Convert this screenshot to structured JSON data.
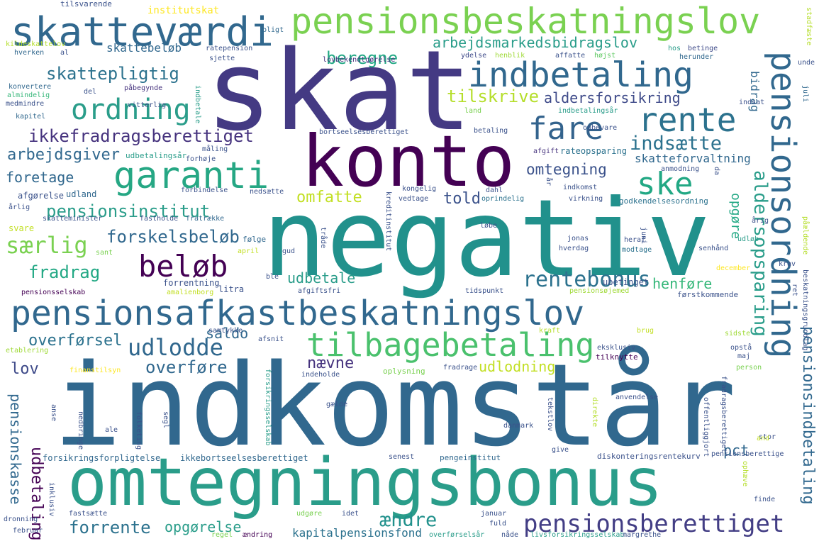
{
  "words": [
    {
      "t": "indkomstår",
      "c": "#31688e"
    },
    {
      "t": "negativ",
      "c": "#21918c"
    },
    {
      "t": "skat",
      "c": "#443a83"
    },
    {
      "t": "konto",
      "c": "#440154"
    },
    {
      "t": "omtegningsbonus",
      "c": "#2a9d8a"
    },
    {
      "t": "pensionsafkastbeskatningslov",
      "c": "#31688e"
    },
    {
      "t": "pensionsbeskatningslov",
      "c": "#7ad151"
    },
    {
      "t": "skatteværdi",
      "c": "#31688e"
    },
    {
      "t": "pensionsordning",
      "c": "#31688e"
    },
    {
      "t": "indbetaling",
      "c": "#31688e"
    },
    {
      "t": "tilbagebetaling",
      "c": "#4ac16d"
    },
    {
      "t": "garanti",
      "c": "#26a784"
    },
    {
      "t": "rente",
      "c": "#2c728e"
    },
    {
      "t": "fare",
      "c": "#33638d"
    },
    {
      "t": "ordning",
      "c": "#2a9d8a"
    },
    {
      "t": "beløb",
      "c": "#440154"
    },
    {
      "t": "ske",
      "c": "#22a884"
    },
    {
      "t": "pensionsberettiget",
      "c": "#433e85"
    },
    {
      "t": "udlodde",
      "c": "#31688e"
    },
    {
      "t": "omtegning",
      "c": "#3b528b"
    },
    {
      "t": "indsætte",
      "c": "#2c728e"
    },
    {
      "t": "rentebonus",
      "c": "#2c728e"
    },
    {
      "t": "ikkefradragsberettiget",
      "c": "#46337e"
    },
    {
      "t": "pensionsinstitut",
      "c": "#2a9d8a"
    },
    {
      "t": "særlig",
      "c": "#7ad151"
    },
    {
      "t": "forskelsbeløb",
      "c": "#31688e"
    },
    {
      "t": "fradrag",
      "c": "#22a884"
    },
    {
      "t": "skattepligtig",
      "c": "#2c728e"
    },
    {
      "t": "beregne",
      "c": "#22a884"
    },
    {
      "t": "arbejdsmarkedsbidragslov",
      "c": "#2a9d8a"
    },
    {
      "t": "aldersopsparing",
      "c": "#2a9d8a"
    },
    {
      "t": "pensionsindbetaling",
      "c": "#31688e"
    },
    {
      "t": "udbetaling",
      "c": "#440154"
    },
    {
      "t": "tilskrive",
      "c": "#b5de2b"
    },
    {
      "t": "aldersforsikring",
      "c": "#3e4a89"
    },
    {
      "t": "forrente",
      "c": "#2c728e"
    },
    {
      "t": "overføre",
      "c": "#31688e"
    },
    {
      "t": "ændre",
      "c": "#21918c"
    },
    {
      "t": "opgørelse",
      "c": "#2a9d8a"
    },
    {
      "t": "udlodning",
      "c": "#c2df23"
    },
    {
      "t": "nævne",
      "c": "#46337e"
    },
    {
      "t": "saldo",
      "c": "#31688e"
    },
    {
      "t": "overførsel",
      "c": "#2c728e"
    },
    {
      "t": "lov",
      "c": "#3e4a89"
    },
    {
      "t": "omfatte",
      "c": "#c2df23"
    },
    {
      "t": "told",
      "c": "#3b528b"
    },
    {
      "t": "udbetale",
      "c": "#2a9d8a"
    },
    {
      "t": "henføre",
      "c": "#35b779"
    },
    {
      "t": "arbejdsgiver",
      "c": "#31688e"
    },
    {
      "t": "foretage",
      "c": "#31688e"
    },
    {
      "t": "skattebeløb",
      "c": "#31688e"
    },
    {
      "t": "bidrag",
      "c": "#31688e"
    },
    {
      "t": "opgøre",
      "c": "#22a884"
    },
    {
      "t": "pensionskasse",
      "c": "#31688e"
    },
    {
      "t": "pct",
      "c": "#31688e"
    },
    {
      "t": "kapitalpensionsfond",
      "c": "#2c728e"
    },
    {
      "t": "skatteforvaltning",
      "c": "#31688e"
    },
    {
      "t": "institutskat",
      "c": "#fde725"
    },
    {
      "t": "tilsvarende",
      "c": "#3b528b"
    },
    {
      "t": "ratepension",
      "c": "#3b528b"
    },
    {
      "t": "pligt",
      "c": "#31688e"
    },
    {
      "t": "stadfæste",
      "c": "#b5de2b"
    },
    {
      "t": "lovbekendtgørelse",
      "c": "#46337e"
    },
    {
      "t": "ydelse",
      "c": "#3e4a89"
    },
    {
      "t": "henblik",
      "c": "#a0da39"
    },
    {
      "t": "affatte",
      "c": "#3b528b"
    },
    {
      "t": "højst",
      "c": "#5ec962"
    },
    {
      "t": "hos",
      "c": "#2a9d8a"
    },
    {
      "t": "betinge",
      "c": "#3e4a89"
    },
    {
      "t": "herunder",
      "c": "#31688e"
    },
    {
      "t": "unde",
      "c": "#3b528b"
    },
    {
      "t": "kildeskattelov",
      "c": "#b5de2b"
    },
    {
      "t": "hverken",
      "c": "#31688e"
    },
    {
      "t": "al",
      "c": "#3b528b"
    },
    {
      "t": "sjette",
      "c": "#3b528b"
    },
    {
      "t": "konvertere",
      "c": "#31688e"
    },
    {
      "t": "almindelig",
      "c": "#35b779"
    },
    {
      "t": "påbegynde",
      "c": "#46337e"
    },
    {
      "t": "medmindre",
      "c": "#3b528b"
    },
    {
      "t": "del",
      "c": "#3b528b"
    },
    {
      "t": "kapitel",
      "c": "#31688e"
    },
    {
      "t": "vitterlig",
      "c": "#3b528b"
    },
    {
      "t": "indbetale",
      "c": "#2a9d8a"
    },
    {
      "t": "indsat",
      "c": "#3b528b"
    },
    {
      "t": "land",
      "c": "#7ad151"
    },
    {
      "t": "indbetalingsår",
      "c": "#2a9d8a"
    },
    {
      "t": "juli",
      "c": "#31688e"
    },
    {
      "t": "bortseelsesberettiget",
      "c": "#3b528b"
    },
    {
      "t": "betaling",
      "c": "#3b528b"
    },
    {
      "t": "opbevare",
      "c": "#3b528b"
    },
    {
      "t": "afgift",
      "c": "#46337e"
    },
    {
      "t": "rateopsparing",
      "c": "#2c728e"
    },
    {
      "t": "udbetalingsår",
      "c": "#2a9d8a"
    },
    {
      "t": "måling",
      "c": "#3b528b"
    },
    {
      "t": "forhøje",
      "c": "#3b528b"
    },
    {
      "t": "anmodning",
      "c": "#3b528b"
    },
    {
      "t": "afgørelse",
      "c": "#3b528b"
    },
    {
      "t": "udland",
      "c": "#31688e"
    },
    {
      "t": "forbindelse",
      "c": "#3b528b"
    },
    {
      "t": "nedsætte",
      "c": "#3b528b"
    },
    {
      "t": "kongelig",
      "c": "#3b528b"
    },
    {
      "t": "dahl",
      "c": "#3b528b"
    },
    {
      "t": "indkomst",
      "c": "#3b528b"
    },
    {
      "t": "vedtage",
      "c": "#3b528b"
    },
    {
      "t": "oprindelig",
      "c": "#2c728e"
    },
    {
      "t": "virkning",
      "c": "#3b528b"
    },
    {
      "t": "godkendelsesordning",
      "c": "#2c728e"
    },
    {
      "t": "årlig",
      "c": "#3b528b"
    },
    {
      "t": "skatteminister",
      "c": "#3b528b"
    },
    {
      "t": "fastholde",
      "c": "#3b528b"
    },
    {
      "t": "fratrække",
      "c": "#31688e"
    },
    {
      "t": "følge",
      "c": "#31688e"
    },
    {
      "t": "løbe",
      "c": "#3b528b"
    },
    {
      "t": "svare",
      "c": "#c2df23"
    },
    {
      "t": "sant",
      "c": "#7ad151"
    },
    {
      "t": "april",
      "c": "#c2df23"
    },
    {
      "t": "gud",
      "c": "#3b528b"
    },
    {
      "t": "jonas",
      "c": "#3b528b"
    },
    {
      "t": "heraf",
      "c": "#3b528b"
    },
    {
      "t": "modtage",
      "c": "#2c728e"
    },
    {
      "t": "hverdag",
      "c": "#3b528b"
    },
    {
      "t": "senhånd",
      "c": "#3b528b"
    },
    {
      "t": "udløb",
      "c": "#2a9d8a"
    },
    {
      "t": "påældende",
      "c": "#b5de2b"
    },
    {
      "t": "krav",
      "c": "#3b528b"
    },
    {
      "t": "ble",
      "c": "#3b528b"
    },
    {
      "t": "december",
      "c": "#fde725"
    },
    {
      "t": "ubetinget",
      "c": "#3b528b"
    },
    {
      "t": "forrentning",
      "c": "#3b528b"
    },
    {
      "t": "litra",
      "c": "#3b528b"
    },
    {
      "t": "amalienborg",
      "c": "#c2df23"
    },
    {
      "t": "afgiftsfri",
      "c": "#3b528b"
    },
    {
      "t": "tidspunkt",
      "c": "#3b528b"
    },
    {
      "t": "pensionsøjemed",
      "c": "#a0da39"
    },
    {
      "t": "førstkommende",
      "c": "#3b528b"
    },
    {
      "t": "pensionsselskab",
      "c": "#440154"
    },
    {
      "t": "samtykke",
      "c": "#3b528b"
    },
    {
      "t": "kraft",
      "c": "#b5de2b"
    },
    {
      "t": "sidste",
      "c": "#a0da39"
    },
    {
      "t": "brug",
      "c": "#c2df23"
    },
    {
      "t": "afsnit",
      "c": "#3b528b"
    },
    {
      "t": "eksklusiv",
      "c": "#3b528b"
    },
    {
      "t": "opstå",
      "c": "#3b528b"
    },
    {
      "t": "maj",
      "c": "#3b528b"
    },
    {
      "t": "etablering",
      "c": "#a0da39"
    },
    {
      "t": "tilknytte",
      "c": "#440154"
    },
    {
      "t": "person",
      "c": "#7ad151"
    },
    {
      "t": "oplysning",
      "c": "#7ad151"
    },
    {
      "t": "fradrage",
      "c": "#3b528b"
    },
    {
      "t": "finanstilsyn",
      "c": "#fde725"
    },
    {
      "t": "indeholde",
      "c": "#3b528b"
    },
    {
      "t": "anvendelse",
      "c": "#3b528b"
    },
    {
      "t": "gælde",
      "c": "#3b528b"
    },
    {
      "t": "ale",
      "c": "#3b528b"
    },
    {
      "t": "danmark",
      "c": "#3b528b"
    },
    {
      "t": "stor",
      "c": "#3b528b"
    },
    {
      "t": "and",
      "c": "#c2df23"
    },
    {
      "t": "forsikringsforpligtelse",
      "c": "#31688e"
    },
    {
      "t": "ikkebortseelsesberettiget",
      "c": "#31688e"
    },
    {
      "t": "pengeinstitut",
      "c": "#31688e"
    },
    {
      "t": "diskonteringsrentekurv",
      "c": "#3b528b"
    },
    {
      "t": "pensionsberettige",
      "c": "#3b528b"
    },
    {
      "t": "senest",
      "c": "#3b528b"
    },
    {
      "t": "give",
      "c": "#3b528b"
    },
    {
      "t": "finde",
      "c": "#3b528b"
    },
    {
      "t": "fastsætte",
      "c": "#3b528b"
    },
    {
      "t": "udgøre",
      "c": "#7ad151"
    },
    {
      "t": "idet",
      "c": "#3b528b"
    },
    {
      "t": "januar",
      "c": "#3b528b"
    },
    {
      "t": "fuld",
      "c": "#3b528b"
    },
    {
      "t": "februar",
      "c": "#3b528b"
    },
    {
      "t": "regel",
      "c": "#7ad151"
    },
    {
      "t": "ændring",
      "c": "#440154"
    },
    {
      "t": "overførselsår",
      "c": "#2a9d8a"
    },
    {
      "t": "nåde",
      "c": "#3b528b"
    },
    {
      "t": "livsforsikringsselskab",
      "c": "#2a9d8a"
    },
    {
      "t": "margrethe",
      "c": "#3b528b"
    },
    {
      "t": "dronning",
      "c": "#3b528b"
    },
    {
      "t": "inklusiv",
      "c": "#3b528b"
    },
    {
      "t": "folketing",
      "c": "#3b528b"
    },
    {
      "t": "nedbringe",
      "c": "#3b528b"
    },
    {
      "t": "anse",
      "c": "#3b528b"
    },
    {
      "t": "segl",
      "c": "#3b528b"
    },
    {
      "t": "forsikringsselskab",
      "c": "#2a9d8a"
    },
    {
      "t": "tekstlov",
      "c": "#3b528b"
    },
    {
      "t": "direkte",
      "c": "#b5de2b"
    },
    {
      "t": "offentliggjort",
      "c": "#3b528b"
    },
    {
      "t": "fradragsberettiget",
      "c": "#3b528b"
    },
    {
      "t": "ophæve",
      "c": "#b5de2b"
    },
    {
      "t": "beskatningsgrundlag",
      "c": "#3b528b"
    },
    {
      "t": "ret",
      "c": "#3b528b"
    },
    {
      "t": "tråde",
      "c": "#3b528b"
    },
    {
      "t": "kreditinstitut",
      "c": "#3b528b"
    },
    {
      "t": "år",
      "c": "#3b528b"
    },
    {
      "t": "da",
      "c": "#3b528b"
    },
    {
      "t": "juni",
      "c": "#3b528b"
    },
    {
      "t": "årig",
      "c": "#3b528b"
    }
  ]
}
